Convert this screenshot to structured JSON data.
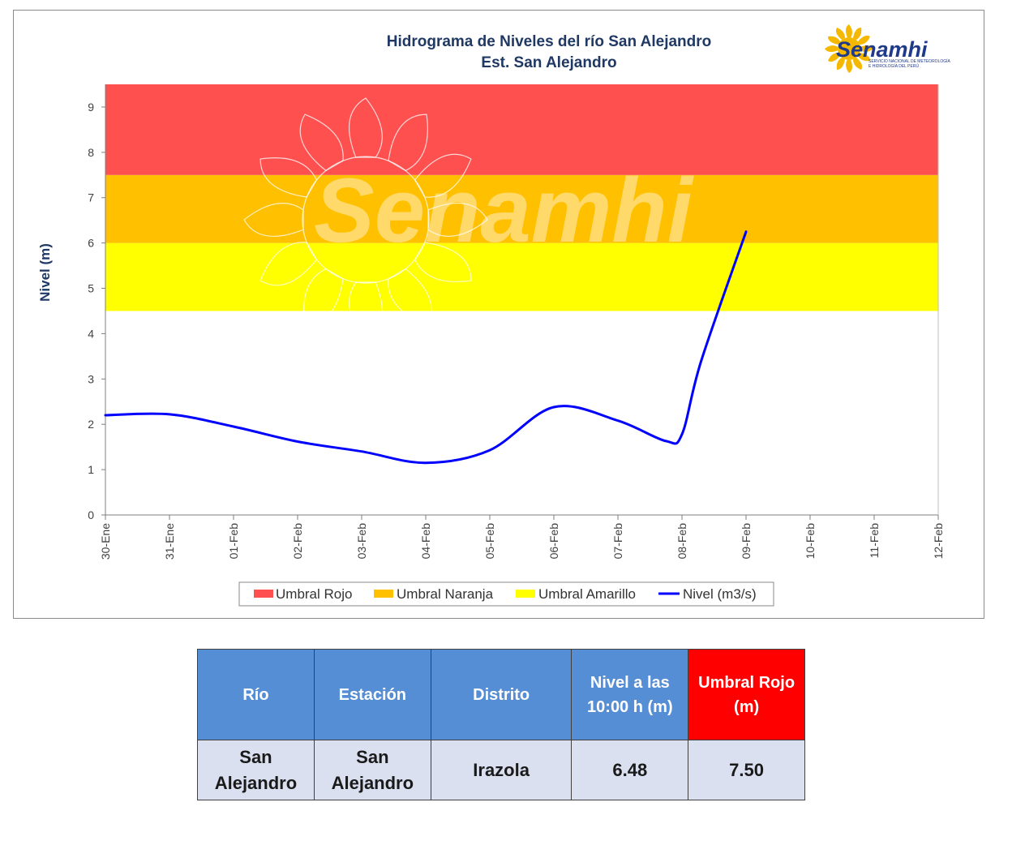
{
  "chart_data": {
    "type": "line",
    "title": "Hidrograma  de Niveles del río San Alejandro",
    "subtitle": "Est. San Alejandro",
    "xlabel": "",
    "ylabel": "Nivel (m)",
    "ylim": [
      0,
      9.5
    ],
    "yticks": [
      "0",
      "1",
      "2",
      "3",
      "4",
      "5",
      "6",
      "7",
      "8",
      "9"
    ],
    "categories": [
      "30-Ene",
      "31-Ene",
      "01-Feb",
      "02-Feb",
      "03-Feb",
      "04-Feb",
      "05-Feb",
      "06-Feb",
      "07-Feb",
      "08-Feb",
      "09-Feb",
      "10-Feb",
      "11-Feb",
      "12-Feb"
    ],
    "bands": [
      {
        "name": "Umbral Amarillo",
        "from": 4.5,
        "to": 6.0,
        "color": "#ffff00"
      },
      {
        "name": "Umbral Naranja",
        "from": 6.0,
        "to": 7.5,
        "color": "#ffc000"
      },
      {
        "name": "Umbral Rojo",
        "from": 7.5,
        "to": 9.5,
        "color": "#ff5050"
      }
    ],
    "series": [
      {
        "name": "Nivel (m3/s)",
        "color": "#0000ff",
        "x": [
          0,
          1,
          2,
          3,
          4,
          5,
          6,
          7,
          8,
          8.75,
          9,
          9.3,
          10
        ],
        "values": [
          2.2,
          2.22,
          1.95,
          1.62,
          1.4,
          1.15,
          1.43,
          2.38,
          2.08,
          1.63,
          1.78,
          3.4,
          6.25
        ]
      }
    ],
    "legend": {
      "position": "bottom",
      "items": [
        {
          "label": "Umbral Rojo",
          "color": "#ff5050",
          "kind": "box"
        },
        {
          "label": "Umbral Naranja",
          "color": "#ffc000",
          "kind": "box"
        },
        {
          "label": "Umbral Amarillo",
          "color": "#ffff00",
          "kind": "box"
        },
        {
          "label": "Nivel (m3/s)",
          "color": "#0000ff",
          "kind": "line"
        }
      ]
    },
    "grid": false
  },
  "logo": {
    "text": "Senamhi",
    "subtitle_line1": "SERVICIO NACIONAL DE METEOROLOGÍA",
    "subtitle_line2": "E HIDROLOGÍA DEL PERÚ",
    "icon": "sun-icon",
    "sun_color": "#f5b800",
    "text_color": "#1f3a8a"
  },
  "watermark": {
    "text": "Senamhi",
    "icon": "sun-icon"
  },
  "table": {
    "headers": [
      "Río",
      "Estación",
      "Distrito",
      "Nivel a las 10:00 h (m)",
      "Umbral Rojo (m)"
    ],
    "rows": [
      [
        "San Alejandro",
        "San Alejandro",
        "Irazola",
        "6.48",
        "7.50"
      ]
    ],
    "header_color": "#558ed5",
    "umbral_header_color": "#ff0000",
    "row_color": "#dae0f0"
  }
}
